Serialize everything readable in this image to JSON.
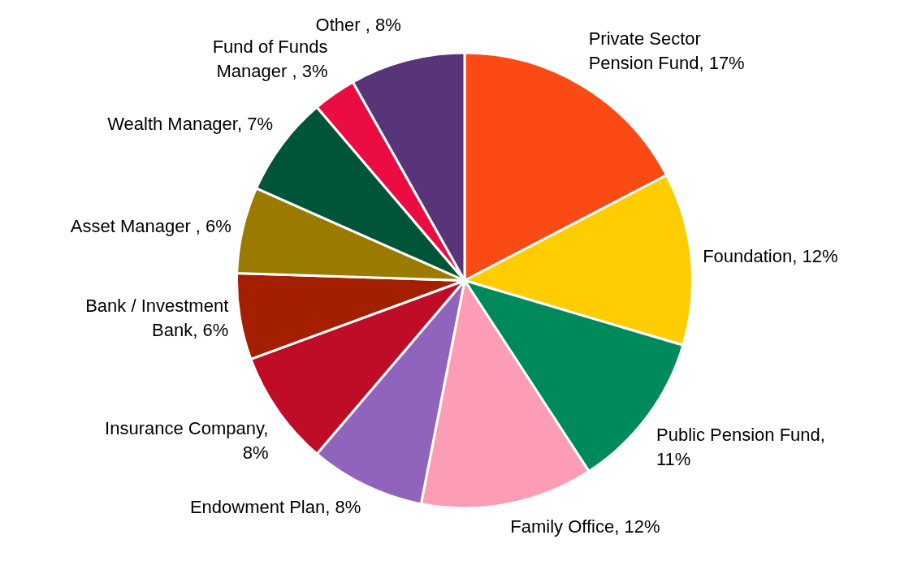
{
  "chart_data": {
    "type": "pie",
    "categories": [
      "Private Sector Pension Fund",
      "Foundation",
      "Public Pension Fund",
      "Family Office",
      "Endowment Plan",
      "Insurance Company",
      "Bank / Investment Bank",
      "Asset Manager",
      "Wealth Manager",
      "Fund of Funds Manager",
      "Other"
    ],
    "values": [
      17,
      12,
      11,
      12,
      8,
      8,
      6,
      6,
      7,
      3,
      8
    ],
    "colors": [
      "#fc4a14",
      "#ffcd00",
      "#008a5b",
      "#fc9db5",
      "#9063bd",
      "#bf0d28",
      "#a31f00",
      "#9a7b00",
      "#005538",
      "#eb0c41",
      "#583478"
    ],
    "value_labels": [
      ", 17%",
      ", 12%",
      ", 11%",
      ", 12%",
      ", 8%",
      ", 8%",
      ", 6%",
      " , 6%",
      ", 7%",
      " , 3%",
      " , 8%"
    ],
    "legend": false
  }
}
